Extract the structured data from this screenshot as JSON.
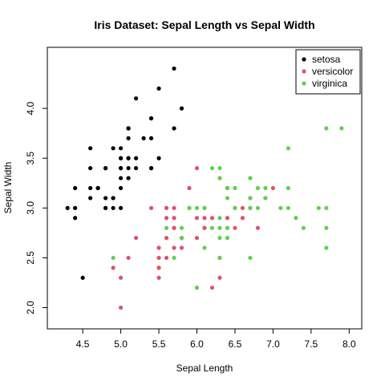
{
  "chart_data": {
    "type": "scatter",
    "title": "Iris Dataset: Sepal Length vs Sepal Width",
    "xlabel": "Sepal Length",
    "ylabel": "Sepal Width",
    "xlim": [
      4.2,
      8.0
    ],
    "ylim": [
      1.9,
      4.5
    ],
    "x_ticks": [
      "4.5",
      "5.0",
      "5.5",
      "6.0",
      "6.5",
      "7.0",
      "7.5",
      "8.0"
    ],
    "y_ticks": [
      "2.0",
      "2.5",
      "3.0",
      "3.5",
      "4.0"
    ],
    "grid": false,
    "legend_position": "top-right",
    "series": [
      {
        "name": "setosa",
        "color": "#000000",
        "points": [
          [
            5.1,
            3.5
          ],
          [
            4.9,
            3.0
          ],
          [
            4.7,
            3.2
          ],
          [
            4.6,
            3.1
          ],
          [
            5.0,
            3.6
          ],
          [
            5.4,
            3.9
          ],
          [
            4.6,
            3.4
          ],
          [
            5.0,
            3.4
          ],
          [
            4.4,
            2.9
          ],
          [
            4.9,
            3.1
          ],
          [
            5.4,
            3.7
          ],
          [
            4.8,
            3.4
          ],
          [
            4.8,
            3.0
          ],
          [
            4.3,
            3.0
          ],
          [
            5.8,
            4.0
          ],
          [
            5.7,
            4.4
          ],
          [
            5.4,
            3.9
          ],
          [
            5.1,
            3.5
          ],
          [
            5.7,
            3.8
          ],
          [
            5.1,
            3.8
          ],
          [
            5.4,
            3.4
          ],
          [
            5.1,
            3.7
          ],
          [
            4.6,
            3.6
          ],
          [
            5.1,
            3.3
          ],
          [
            4.8,
            3.4
          ],
          [
            5.0,
            3.0
          ],
          [
            5.0,
            3.4
          ],
          [
            5.2,
            3.5
          ],
          [
            5.2,
            3.4
          ],
          [
            4.7,
            3.2
          ],
          [
            4.8,
            3.1
          ],
          [
            5.4,
            3.4
          ],
          [
            5.2,
            4.1
          ],
          [
            5.5,
            4.2
          ],
          [
            4.9,
            3.1
          ],
          [
            5.0,
            3.2
          ],
          [
            5.5,
            3.5
          ],
          [
            4.9,
            3.6
          ],
          [
            4.4,
            3.0
          ],
          [
            5.1,
            3.4
          ],
          [
            5.0,
            3.5
          ],
          [
            4.5,
            2.3
          ],
          [
            4.4,
            3.2
          ],
          [
            5.0,
            3.5
          ],
          [
            5.1,
            3.8
          ],
          [
            4.8,
            3.0
          ],
          [
            5.1,
            3.8
          ],
          [
            4.6,
            3.2
          ],
          [
            5.3,
            3.7
          ],
          [
            5.0,
            3.3
          ]
        ]
      },
      {
        "name": "versicolor",
        "color": "#DF536B",
        "points": [
          [
            7.0,
            3.2
          ],
          [
            6.4,
            3.2
          ],
          [
            6.9,
            3.1
          ],
          [
            5.5,
            2.3
          ],
          [
            6.5,
            2.8
          ],
          [
            5.7,
            2.8
          ],
          [
            6.3,
            3.3
          ],
          [
            4.9,
            2.4
          ],
          [
            6.6,
            2.9
          ],
          [
            5.2,
            2.7
          ],
          [
            5.0,
            2.0
          ],
          [
            5.9,
            3.0
          ],
          [
            6.0,
            2.2
          ],
          [
            6.1,
            2.9
          ],
          [
            5.6,
            2.9
          ],
          [
            6.7,
            3.1
          ],
          [
            5.6,
            3.0
          ],
          [
            5.8,
            2.7
          ],
          [
            6.2,
            2.2
          ],
          [
            5.6,
            2.5
          ],
          [
            5.9,
            3.2
          ],
          [
            6.1,
            2.8
          ],
          [
            6.3,
            2.5
          ],
          [
            6.1,
            2.8
          ],
          [
            6.4,
            2.9
          ],
          [
            6.6,
            3.0
          ],
          [
            6.8,
            2.8
          ],
          [
            6.7,
            3.0
          ],
          [
            6.0,
            2.9
          ],
          [
            5.7,
            2.6
          ],
          [
            5.5,
            2.4
          ],
          [
            5.5,
            2.4
          ],
          [
            5.8,
            2.7
          ],
          [
            6.0,
            2.7
          ],
          [
            5.4,
            3.0
          ],
          [
            6.0,
            3.4
          ],
          [
            6.7,
            3.1
          ],
          [
            6.3,
            2.3
          ],
          [
            5.6,
            3.0
          ],
          [
            5.5,
            2.5
          ],
          [
            5.5,
            2.6
          ],
          [
            6.1,
            3.0
          ],
          [
            5.8,
            2.6
          ],
          [
            5.0,
            2.3
          ],
          [
            5.6,
            2.7
          ],
          [
            5.7,
            3.0
          ],
          [
            5.7,
            2.9
          ],
          [
            6.2,
            2.9
          ],
          [
            5.1,
            2.5
          ],
          [
            5.7,
            2.8
          ]
        ]
      },
      {
        "name": "virginica",
        "color": "#61D04F",
        "points": [
          [
            6.3,
            3.3
          ],
          [
            5.8,
            2.7
          ],
          [
            7.1,
            3.0
          ],
          [
            6.3,
            2.9
          ],
          [
            6.5,
            3.0
          ],
          [
            7.6,
            3.0
          ],
          [
            4.9,
            2.5
          ],
          [
            7.3,
            2.9
          ],
          [
            6.7,
            2.5
          ],
          [
            7.2,
            3.6
          ],
          [
            6.5,
            3.2
          ],
          [
            6.4,
            2.7
          ],
          [
            6.8,
            3.0
          ],
          [
            5.7,
            2.5
          ],
          [
            5.8,
            2.8
          ],
          [
            6.4,
            3.2
          ],
          [
            6.5,
            3.0
          ],
          [
            7.7,
            3.8
          ],
          [
            7.7,
            2.6
          ],
          [
            6.0,
            2.2
          ],
          [
            6.9,
            3.2
          ],
          [
            5.6,
            2.8
          ],
          [
            7.7,
            2.8
          ],
          [
            6.3,
            2.7
          ],
          [
            6.7,
            3.3
          ],
          [
            7.2,
            3.2
          ],
          [
            6.2,
            2.8
          ],
          [
            6.1,
            3.0
          ],
          [
            6.4,
            2.8
          ],
          [
            7.2,
            3.0
          ],
          [
            7.4,
            2.8
          ],
          [
            7.9,
            3.8
          ],
          [
            6.4,
            2.8
          ],
          [
            6.3,
            2.8
          ],
          [
            6.1,
            2.6
          ],
          [
            7.7,
            3.0
          ],
          [
            6.3,
            3.4
          ],
          [
            6.4,
            3.1
          ],
          [
            6.0,
            3.0
          ],
          [
            6.9,
            3.1
          ],
          [
            6.7,
            3.1
          ],
          [
            6.9,
            3.1
          ],
          [
            5.8,
            2.7
          ],
          [
            6.8,
            3.2
          ],
          [
            6.7,
            3.3
          ],
          [
            6.7,
            3.0
          ],
          [
            6.3,
            2.5
          ],
          [
            6.5,
            3.0
          ],
          [
            6.2,
            3.4
          ],
          [
            5.9,
            3.0
          ]
        ]
      }
    ]
  }
}
